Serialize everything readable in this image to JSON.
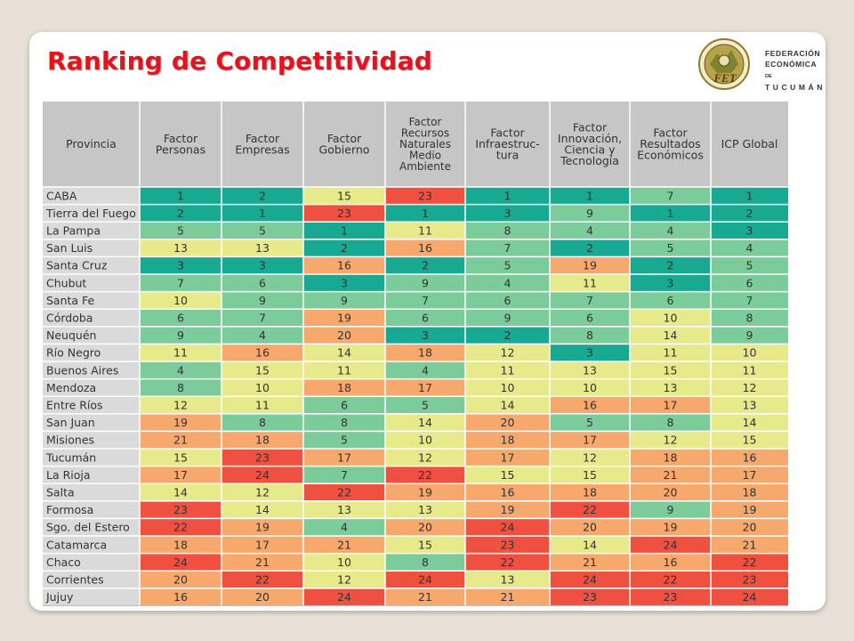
{
  "slide": {
    "title": "Ranking de Competitividad"
  },
  "logo": {
    "line1": "FEDERACIÓN",
    "line2": "ECONÓMICA",
    "line2_suffix": "DE",
    "line3": "T U C U M Á N",
    "seal_text": "FET"
  },
  "colors": {
    "rank_1_3": "#17a991",
    "rank_4_9": "#7ccb9b",
    "rank_10_15": "#e7ea8b",
    "rank_16_21": "#f7a86d",
    "rank_22_24": "#ef5040",
    "header_bg": "#c6c6c6",
    "row_label_bg": "#dadada",
    "title": "#e8121c"
  },
  "chart_data": {
    "type": "table",
    "columns": [
      "Provincia",
      "Factor\nPersonas",
      "Factor\nEmpresas",
      "Factor\nGobierno",
      "Factor\nRecursos\nNaturales\nMedio\nAmbiente",
      "Factor\nInfraestruc-\ntura",
      "Factor\nInnovación,\nCiencia y\nTecnología",
      "Factor\nResultados\nEconómicos",
      "ICP Global"
    ],
    "rows": [
      {
        "provincia": "CABA",
        "values": [
          1,
          2,
          15,
          23,
          1,
          1,
          7,
          1
        ]
      },
      {
        "provincia": "Tierra del Fuego",
        "values": [
          2,
          1,
          23,
          1,
          3,
          9,
          1,
          2
        ]
      },
      {
        "provincia": "La Pampa",
        "values": [
          5,
          5,
          1,
          11,
          8,
          4,
          4,
          3
        ]
      },
      {
        "provincia": "San Luis",
        "values": [
          13,
          13,
          2,
          16,
          7,
          2,
          5,
          4
        ]
      },
      {
        "provincia": "Santa Cruz",
        "values": [
          3,
          3,
          16,
          2,
          5,
          19,
          2,
          5
        ]
      },
      {
        "provincia": "Chubut",
        "values": [
          7,
          6,
          3,
          9,
          4,
          11,
          3,
          6
        ]
      },
      {
        "provincia": "Santa Fe",
        "values": [
          10,
          9,
          9,
          7,
          6,
          7,
          6,
          7
        ]
      },
      {
        "provincia": "Córdoba",
        "values": [
          6,
          7,
          19,
          6,
          9,
          6,
          10,
          8
        ]
      },
      {
        "provincia": "Neuquén",
        "values": [
          9,
          4,
          20,
          3,
          2,
          8,
          14,
          9
        ]
      },
      {
        "provincia": "Río Negro",
        "values": [
          11,
          16,
          14,
          18,
          12,
          3,
          11,
          10
        ]
      },
      {
        "provincia": "Buenos Aires",
        "values": [
          4,
          15,
          11,
          4,
          11,
          13,
          15,
          11
        ]
      },
      {
        "provincia": "Mendoza",
        "values": [
          8,
          10,
          18,
          17,
          10,
          10,
          13,
          12
        ]
      },
      {
        "provincia": "Entre Ríos",
        "values": [
          12,
          11,
          6,
          5,
          14,
          16,
          17,
          13
        ]
      },
      {
        "provincia": "San Juan",
        "values": [
          19,
          8,
          8,
          14,
          20,
          5,
          8,
          14
        ]
      },
      {
        "provincia": "Misiones",
        "values": [
          21,
          18,
          5,
          10,
          18,
          17,
          12,
          15
        ]
      },
      {
        "provincia": "Tucumán",
        "values": [
          15,
          23,
          17,
          12,
          17,
          12,
          18,
          16
        ]
      },
      {
        "provincia": "La Rioja",
        "values": [
          17,
          24,
          7,
          22,
          15,
          15,
          21,
          17
        ]
      },
      {
        "provincia": "Salta",
        "values": [
          14,
          12,
          22,
          19,
          16,
          18,
          20,
          18
        ]
      },
      {
        "provincia": "Formosa",
        "values": [
          23,
          14,
          13,
          13,
          19,
          22,
          9,
          19
        ]
      },
      {
        "provincia": "Sgo. del Estero",
        "values": [
          22,
          19,
          4,
          20,
          24,
          20,
          19,
          20
        ]
      },
      {
        "provincia": "Catamarca",
        "values": [
          18,
          17,
          21,
          15,
          23,
          14,
          24,
          21
        ]
      },
      {
        "provincia": "Chaco",
        "values": [
          24,
          21,
          10,
          8,
          22,
          21,
          16,
          22
        ]
      },
      {
        "provincia": "Corrientes",
        "values": [
          20,
          22,
          12,
          24,
          13,
          24,
          22,
          23
        ]
      },
      {
        "provincia": "Jujuy",
        "values": [
          16,
          20,
          24,
          21,
          21,
          23,
          23,
          24
        ]
      }
    ]
  }
}
